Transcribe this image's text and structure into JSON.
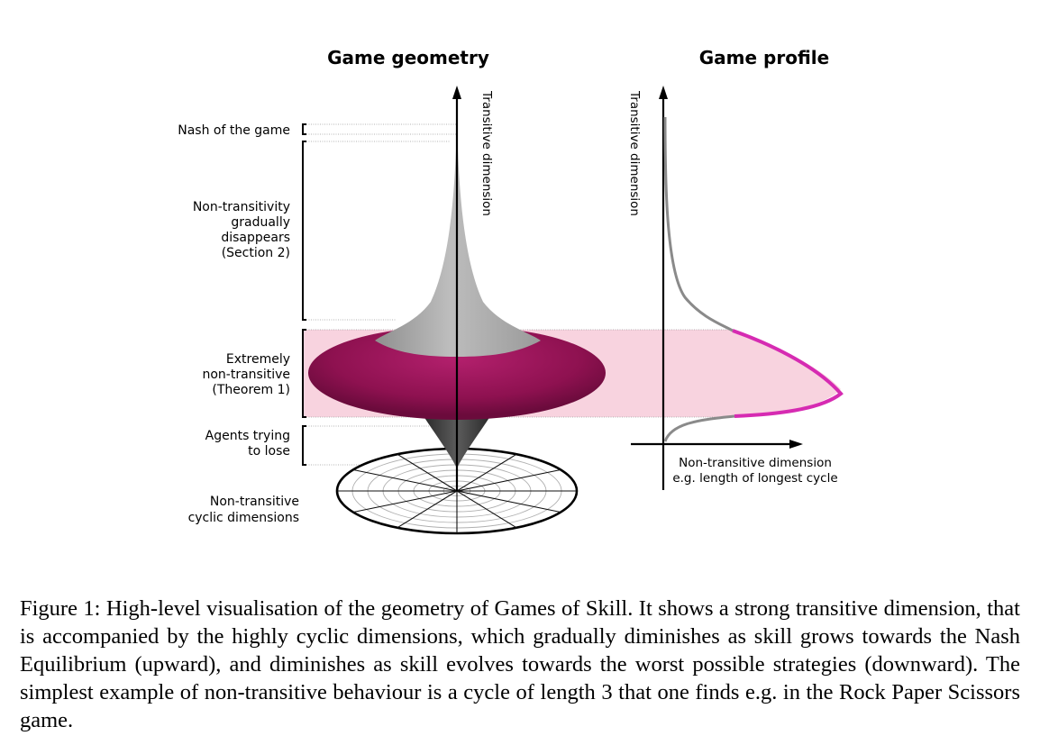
{
  "figure": {
    "left_title": "Game geometry",
    "right_title": "Game profile",
    "left_axis_label": "Transitive dimension",
    "right_y_axis_label": "Transitive dimension",
    "right_x_axis_label_line1": "Non-transitive dimension",
    "right_x_axis_label_line2": "e.g. length of longest cycle",
    "labels": {
      "nash": "Nash of the game",
      "non_transitivity": [
        "Non-transitivity",
        "gradually",
        "disappears",
        "(Section 2)"
      ],
      "extremely": [
        "Extremely",
        "non-transitive",
        "(Theorem 1)"
      ],
      "agents": [
        "Agents trying",
        "to lose"
      ],
      "cyclic": [
        "Non-transitive",
        "cyclic dimensions"
      ]
    },
    "colors": {
      "top_gray": "#a9a9a9",
      "disc_magenta": "#8e1150",
      "band_pink": "#f8d3df",
      "curve_magenta": "#d62bb2",
      "curve_gray": "#8a8a8a",
      "bottom_dark": "#3a3a3a"
    }
  },
  "caption": "Figure 1:  High-level visualisation of the geometry of Games of Skill. It shows a strong transitive dimension, that is accompanied by the highly cyclic dimensions, which gradually diminishes as skill grows towards the Nash Equilibrium (upward), and diminishes as skill evolves towards the worst possible strategies (downward). The simplest example of non-transitive behaviour is a cycle of length 3 that one finds e.g. in the Rock Paper Scissors game."
}
